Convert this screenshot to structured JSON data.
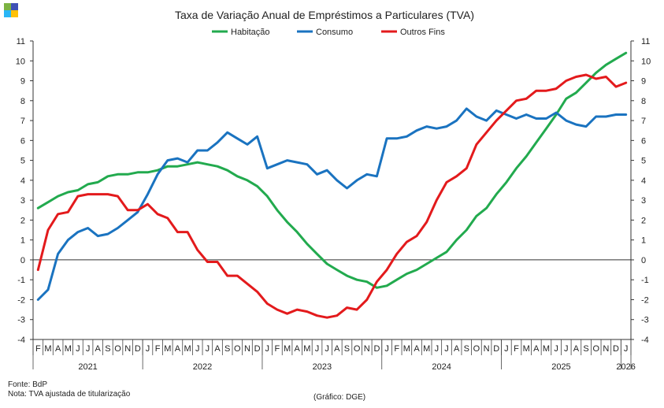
{
  "logo": {
    "colors": [
      "#7cb342",
      "#3f51b5",
      "#29b6f6",
      "#ffc107"
    ]
  },
  "footer": {
    "source": "Fonte: BdP",
    "note": "Nota: TVA ajustada de titularização",
    "credit": "(Gráfico: DGE)"
  },
  "chart_data": {
    "type": "line",
    "title": "Taxa de Variação Anual de Empréstimos  a Particulares (TVA)",
    "ylim": [
      -4,
      11
    ],
    "yticks": [
      -4,
      -3,
      -2,
      -1,
      0,
      1,
      2,
      3,
      4,
      5,
      6,
      7,
      8,
      9,
      10,
      11
    ],
    "grid": false,
    "legend": "top-center",
    "month_labels": [
      "F",
      "M",
      "A",
      "M",
      "J",
      "J",
      "A",
      "S",
      "O",
      "N",
      "D",
      "J",
      "F",
      "M",
      "A",
      "M",
      "J",
      "J",
      "A",
      "S",
      "O",
      "N",
      "D",
      "J",
      "F",
      "M",
      "A",
      "M",
      "J",
      "J",
      "A",
      "S",
      "O",
      "N",
      "D",
      "J",
      "F",
      "M",
      "A",
      "M",
      "J",
      "J",
      "A",
      "S",
      "O",
      "N",
      "D",
      "J",
      "F",
      "M",
      "A",
      "M",
      "J",
      "J",
      "A",
      "S",
      "O",
      "N",
      "D",
      "J"
    ],
    "years": [
      {
        "label": "2021",
        "months": 11
      },
      {
        "label": "2022",
        "months": 12
      },
      {
        "label": "2023",
        "months": 12
      },
      {
        "label": "2024",
        "months": 12
      },
      {
        "label": "2025",
        "months": 12
      },
      {
        "label": "2026",
        "months": 1
      }
    ],
    "series": [
      {
        "name": "Habitação",
        "color": "#22aa4e",
        "values": [
          2.6,
          2.9,
          3.2,
          3.4,
          3.5,
          3.8,
          3.9,
          4.2,
          4.3,
          4.3,
          4.4,
          4.4,
          4.5,
          4.7,
          4.7,
          4.8,
          4.9,
          4.8,
          4.7,
          4.5,
          4.2,
          4.0,
          3.7,
          3.2,
          2.5,
          1.9,
          1.4,
          0.8,
          0.3,
          -0.2,
          -0.5,
          -0.8,
          -1.0,
          -1.1,
          -1.4,
          -1.3,
          -1.0,
          -0.7,
          -0.5,
          -0.2,
          0.1,
          0.4,
          1.0,
          1.5,
          2.2,
          2.6,
          3.3,
          3.9,
          4.6,
          5.2,
          5.9,
          6.6,
          7.3,
          8.1,
          8.4,
          8.9,
          9.4,
          9.8,
          10.1,
          10.4
        ]
      },
      {
        "name": "Consumo",
        "color": "#1a73c0",
        "values": [
          -2.0,
          -1.5,
          0.3,
          1.0,
          1.4,
          1.6,
          1.2,
          1.3,
          1.6,
          2.0,
          2.4,
          3.3,
          4.3,
          5.0,
          5.1,
          4.9,
          5.5,
          5.5,
          5.9,
          6.4,
          6.1,
          5.8,
          6.2,
          4.6,
          4.8,
          5.0,
          4.9,
          4.8,
          4.3,
          4.5,
          4.0,
          3.6,
          4.0,
          4.3,
          4.2,
          6.1,
          6.1,
          6.2,
          6.5,
          6.7,
          6.6,
          6.7,
          7.0,
          7.6,
          7.2,
          7.0,
          7.5,
          7.3,
          7.1,
          7.3,
          7.1,
          7.1,
          7.4,
          7.0,
          6.8,
          6.7,
          7.2,
          7.2,
          7.3,
          7.3
        ]
      },
      {
        "name": "Outros Fins",
        "color": "#e31a1c",
        "values": [
          -0.5,
          1.5,
          2.3,
          2.4,
          3.2,
          3.3,
          3.3,
          3.3,
          3.2,
          2.5,
          2.5,
          2.8,
          2.3,
          2.1,
          1.4,
          1.4,
          0.5,
          -0.1,
          -0.1,
          -0.8,
          -0.8,
          -1.2,
          -1.6,
          -2.2,
          -2.5,
          -2.7,
          -2.5,
          -2.6,
          -2.8,
          -2.9,
          -2.8,
          -2.4,
          -2.5,
          -2.0,
          -1.1,
          -0.5,
          0.3,
          0.9,
          1.2,
          1.9,
          3.0,
          3.9,
          4.2,
          4.6,
          5.8,
          6.4,
          7.0,
          7.5,
          8.0,
          8.1,
          8.5,
          8.5,
          8.6,
          9.0,
          9.2,
          9.3,
          9.1,
          9.2,
          8.7,
          8.9
        ]
      }
    ]
  }
}
